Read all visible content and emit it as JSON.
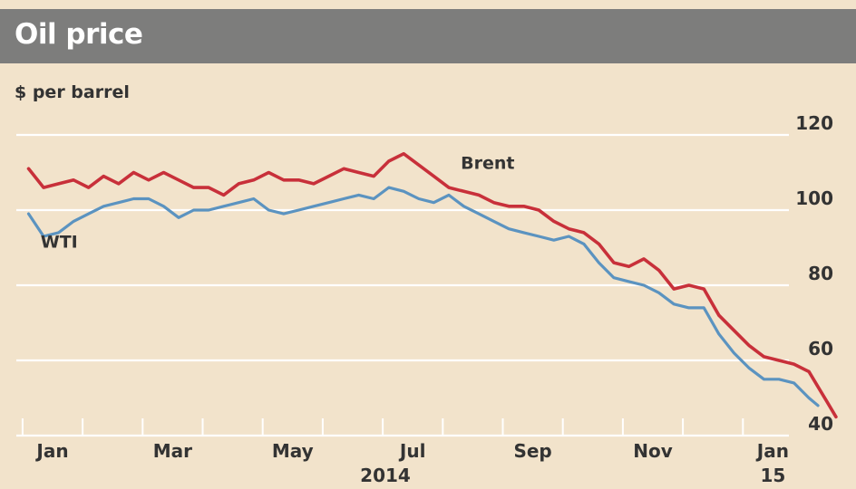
{
  "title": "Oil price",
  "chart_data": {
    "type": "line",
    "title": "Oil price",
    "ylabel": "$ per barrel",
    "xlabel": "",
    "ylim": [
      40,
      120
    ],
    "yticks": [
      40,
      60,
      80,
      100,
      120
    ],
    "year_label": "2014",
    "x_months": [
      {
        "label": "Jan",
        "month": 1
      },
      {
        "label": "Mar",
        "month": 3
      },
      {
        "label": "May",
        "month": 5
      },
      {
        "label": "Jul",
        "month": 7
      },
      {
        "label": "Sep",
        "month": 9
      },
      {
        "label": "Nov",
        "month": 11
      },
      {
        "label": "Jan",
        "month": 13,
        "sublabel": "15"
      }
    ],
    "grid": true,
    "series": [
      {
        "name": "Brent",
        "color": "#c8303a",
        "x": [
          0.0,
          0.25,
          0.5,
          0.75,
          1.0,
          1.25,
          1.5,
          1.75,
          2.0,
          2.25,
          2.5,
          2.75,
          3.0,
          3.25,
          3.5,
          3.75,
          4.0,
          4.25,
          4.5,
          4.75,
          5.0,
          5.25,
          5.5,
          5.75,
          6.0,
          6.25,
          6.5,
          6.75,
          7.0,
          7.25,
          7.5,
          7.75,
          8.0,
          8.25,
          8.5,
          8.75,
          9.0,
          9.25,
          9.5,
          9.75,
          10.0,
          10.25,
          10.5,
          10.75,
          11.0,
          11.25,
          11.5,
          11.75,
          12.0,
          12.25,
          12.5,
          12.75,
          13.0,
          13.15,
          13.3,
          13.45
        ],
        "values": [
          111,
          106,
          107,
          108,
          106,
          109,
          107,
          110,
          108,
          110,
          108,
          106,
          106,
          104,
          107,
          108,
          110,
          108,
          108,
          107,
          109,
          111,
          110,
          109,
          113,
          115,
          112,
          109,
          106,
          105,
          104,
          102,
          101,
          101,
          100,
          97,
          95,
          94,
          91,
          86,
          85,
          87,
          84,
          79,
          80,
          79,
          72,
          68,
          64,
          61,
          60,
          59,
          57,
          53,
          49,
          45
        ]
      },
      {
        "name": "WTI",
        "color": "#5b93c0",
        "x": [
          0.0,
          0.25,
          0.5,
          0.75,
          1.0,
          1.25,
          1.5,
          1.75,
          2.0,
          2.25,
          2.5,
          2.75,
          3.0,
          3.25,
          3.5,
          3.75,
          4.0,
          4.25,
          4.5,
          4.75,
          5.0,
          5.25,
          5.5,
          5.75,
          6.0,
          6.25,
          6.5,
          6.75,
          7.0,
          7.25,
          7.5,
          7.75,
          8.0,
          8.25,
          8.5,
          8.75,
          9.0,
          9.25,
          9.5,
          9.75,
          10.0,
          10.25,
          10.5,
          10.75,
          11.0,
          11.25,
          11.5,
          11.75,
          12.0,
          12.25,
          12.5,
          12.75,
          13.0,
          13.15
        ],
        "values": [
          99,
          93,
          94,
          97,
          99,
          101,
          102,
          103,
          103,
          101,
          98,
          100,
          100,
          101,
          102,
          103,
          100,
          99,
          100,
          101,
          102,
          103,
          104,
          103,
          106,
          105,
          103,
          102,
          104,
          101,
          99,
          97,
          95,
          94,
          93,
          92,
          93,
          91,
          86,
          82,
          81,
          80,
          78,
          75,
          74,
          74,
          67,
          62,
          58,
          55,
          55,
          54,
          50,
          48
        ]
      }
    ],
    "series_labels": [
      {
        "name": "Brent",
        "month": 7.8,
        "value": 111
      },
      {
        "name": "WTI",
        "month": 0.8,
        "value": 90
      }
    ]
  }
}
